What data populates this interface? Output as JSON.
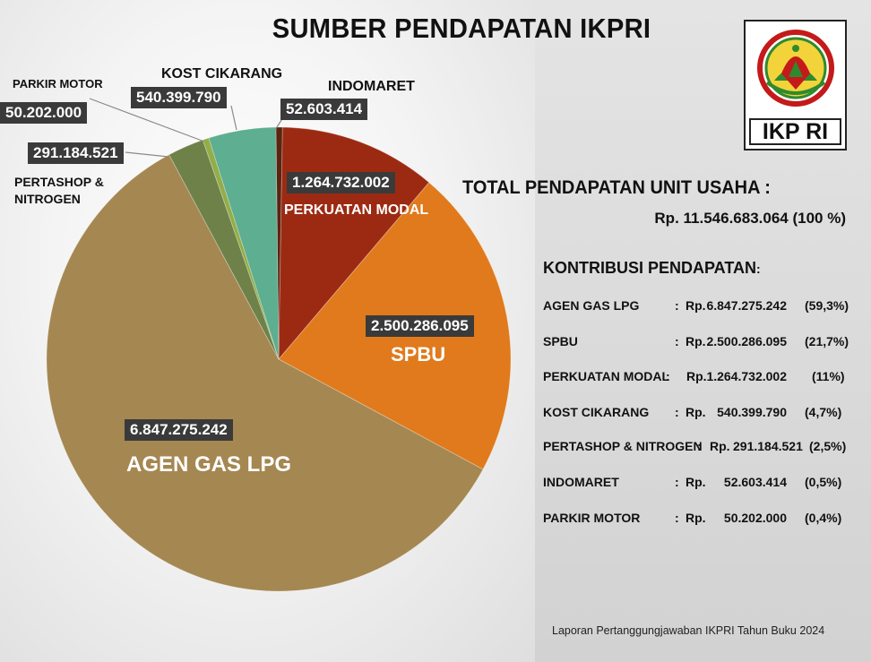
{
  "title": "SUMBER PENDAPATAN IKPRI",
  "logo": {
    "text": "IKP RI"
  },
  "total": {
    "title": "TOTAL PENDAPATAN UNIT USAHA :",
    "value": "Rp. 11.546.683.064 (100 %)"
  },
  "contributions": {
    "title": "KONTRIBUSI PENDAPATAN",
    "title_colon": ":",
    "rows": [
      {
        "name": "AGEN GAS LPG",
        "sep": ":",
        "rp": "Rp.",
        "amount": "6.847.275.242",
        "pct": "(59,3%)"
      },
      {
        "name": "SPBU",
        "sep": ":",
        "rp": "Rp.",
        "amount": "2.500.286.095",
        "pct": "(21,7%)"
      },
      {
        "name": "PERKUATAN MODAL",
        "sep": ":",
        "rp": "Rp.",
        "amount": "1.264.732.002",
        "pct": "(11%)"
      },
      {
        "name": "KOST CIKARANG",
        "sep": ":",
        "rp": "Rp.",
        "amount": "540.399.790",
        "pct": "(4,7%)"
      },
      {
        "name": "PERTASHOP & NITROGEN",
        "sep": ":",
        "rp": "Rp.",
        "amount": "291.184.521",
        "pct": "(2,5%)"
      },
      {
        "name": "INDOMARET",
        "sep": ":",
        "rp": "Rp.",
        "amount": "52.603.414",
        "pct": "(0,5%)"
      },
      {
        "name": "PARKIR MOTOR",
        "sep": ":",
        "rp": "Rp.",
        "amount": "50.202.000",
        "pct": "(0,4%)"
      }
    ]
  },
  "footer": "Laporan Pertanggungjawaban IKPRI Tahun Buku 2024",
  "chart_data": {
    "type": "pie",
    "title": "SUMBER PENDAPATAN IKPRI",
    "slices": [
      {
        "label": "INDOMARET",
        "value_label": "52.603.414",
        "value": 52603414,
        "color": "#5a2410"
      },
      {
        "label": "PERKUATAN MODAL",
        "value_label": "1.264.732.002",
        "value": 1264732002,
        "color": "#9c2a12"
      },
      {
        "label": "SPBU",
        "value_label": "2.500.286.095",
        "value": 2500286095,
        "color": "#e07a1c"
      },
      {
        "label": "AGEN GAS LPG",
        "value_label": "6.847.275.242",
        "value": 6847275242,
        "color": "#a58752"
      },
      {
        "label": "PERTASHOP & NITROGEN",
        "value_label": "291.184.521",
        "value": 291184521,
        "color": "#6e8149"
      },
      {
        "label": "PARKIR MOTOR",
        "value_label": "50.202.000",
        "value": 50202000,
        "color": "#93ad48"
      },
      {
        "label": "KOST CIKARANG",
        "value_label": "540.399.790",
        "value": 540399790,
        "color": "#5eae91"
      }
    ]
  }
}
